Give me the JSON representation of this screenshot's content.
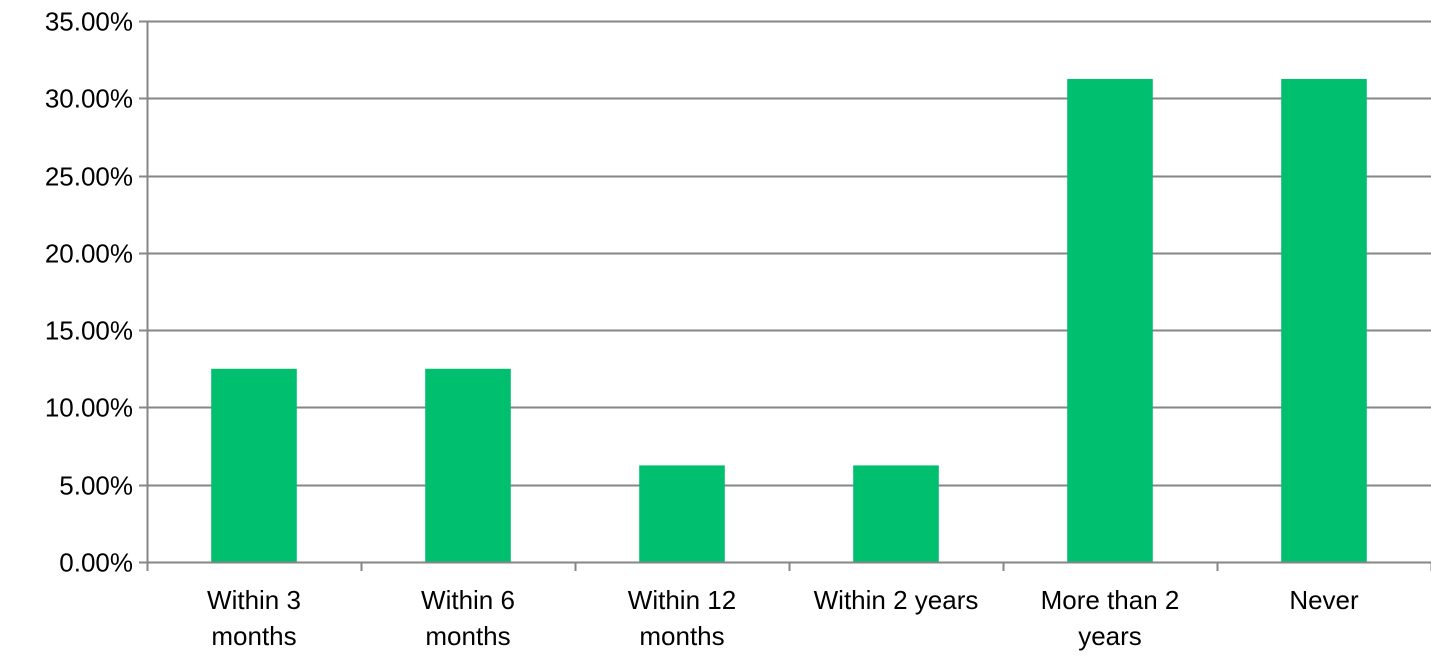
{
  "chart_data": {
    "type": "bar",
    "title": "",
    "xlabel": "",
    "ylabel": "",
    "categories": [
      [
        "Within 3",
        "months"
      ],
      [
        "Within 6",
        "months"
      ],
      [
        "Within 12",
        "months"
      ],
      [
        "Within 2 years"
      ],
      [
        "More than 2",
        "years"
      ],
      [
        "Never"
      ]
    ],
    "values": [
      0.125,
      0.125,
      0.0625,
      0.0625,
      0.3125,
      0.3125
    ],
    "ylim": [
      0,
      0.35
    ],
    "yticks": [
      0,
      0.05,
      0.1,
      0.15,
      0.2,
      0.25,
      0.3,
      0.35
    ],
    "ytick_labels": [
      "0.00%",
      "5.00%",
      "10.00%",
      "15.00%",
      "20.00%",
      "25.00%",
      "30.00%",
      "35.00%"
    ],
    "grid": true,
    "legend": "none",
    "colors": {
      "bar": "#00BF6F",
      "grid": "#868686",
      "axis": "#868686",
      "text": "#000000"
    }
  }
}
